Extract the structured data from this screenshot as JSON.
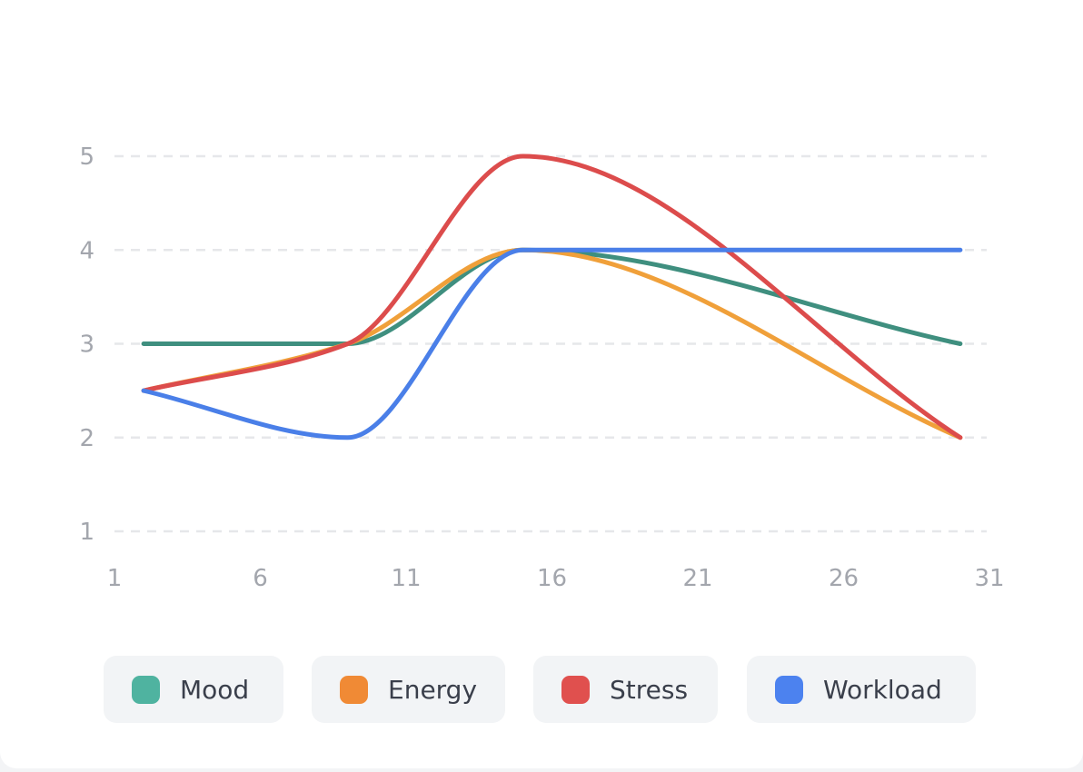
{
  "chart_data": {
    "type": "line",
    "x": [
      2,
      9,
      15,
      30
    ],
    "series": [
      {
        "name": "Mood",
        "values": [
          3,
          3,
          4,
          3
        ],
        "color": "#3f8f7f",
        "legend_color": "#4fb3a0"
      },
      {
        "name": "Energy",
        "values": [
          2.5,
          3,
          4,
          2
        ],
        "color": "#f0a03a",
        "legend_color": "#f08a35"
      },
      {
        "name": "Stress",
        "values": [
          2.5,
          3,
          5,
          2
        ],
        "color": "#dc4c4c",
        "legend_color": "#e0504e"
      },
      {
        "name": "Workload",
        "values": [
          2.5,
          2,
          4,
          4
        ],
        "color": "#4a7fe8",
        "legend_color": "#4c82ef"
      }
    ],
    "title": "",
    "xlabel": "",
    "ylabel": "",
    "x_ticks": [
      "1",
      "6",
      "11",
      "16",
      "21",
      "26",
      "31"
    ],
    "y_ticks": [
      "1",
      "2",
      "3",
      "4",
      "5"
    ],
    "xlim": [
      1,
      31
    ],
    "ylim": [
      1,
      5
    ],
    "grid": "horizontal-dashed",
    "legend_position": "bottom"
  }
}
